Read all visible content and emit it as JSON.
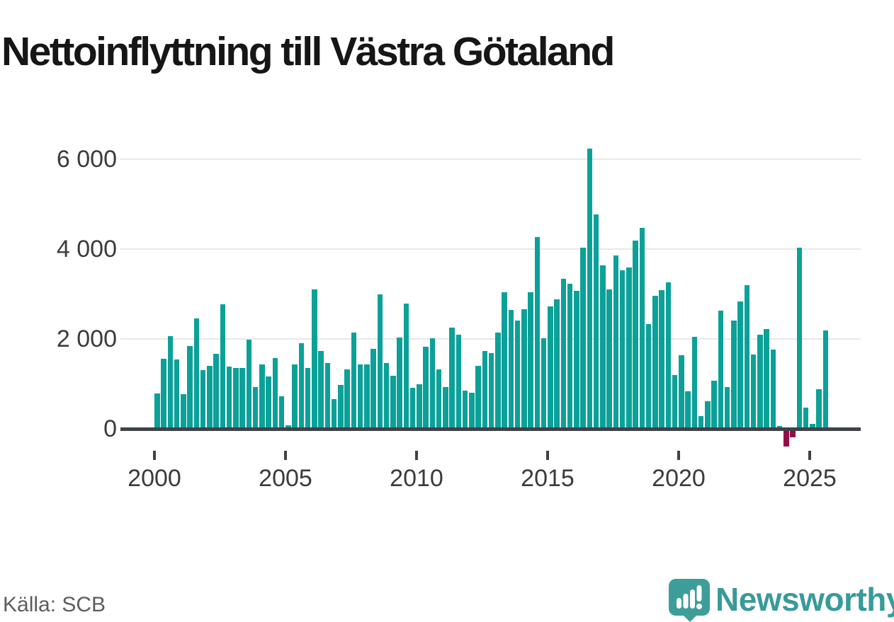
{
  "title": "Nettoinflyttning till Västra Götaland",
  "source": "Källa: SCB",
  "branding": {
    "name": "Newsworthy",
    "logo_icon": "newsworthy-pin-barchart-icon"
  },
  "colors": {
    "bar_positive": "#0ba198",
    "bar_negative": "#960c45",
    "gridline": "#e8e8e8",
    "axis": "#3f4246",
    "tick_text": "#3b3b3b",
    "title_text": "#161616",
    "source_text": "#5d5d61",
    "brand_teal": "#399a9a"
  },
  "chart_data": {
    "type": "bar",
    "title": "Nettoinflyttning till Västra Götaland",
    "xlabel": "",
    "ylabel": "",
    "frequency": "quarterly",
    "period_start": "2000 Q1",
    "period_end": "2025 Q3",
    "values": [
      790,
      1560,
      2060,
      1540,
      770,
      1840,
      2460,
      1310,
      1400,
      1670,
      2780,
      1380,
      1350,
      1350,
      1990,
      930,
      1430,
      1170,
      1580,
      720,
      80,
      1430,
      1900,
      1350,
      3100,
      1730,
      1460,
      660,
      980,
      1330,
      2150,
      1430,
      1430,
      1780,
      3000,
      1460,
      1180,
      2030,
      2790,
      920,
      1000,
      1830,
      2020,
      1320,
      930,
      2260,
      2100,
      850,
      800,
      1400,
      1730,
      1680,
      2140,
      3040,
      2650,
      2410,
      2660,
      3040,
      4270,
      2020,
      2730,
      2880,
      3350,
      3230,
      3080,
      4040,
      6240,
      4780,
      3640,
      3110,
      3870,
      3530,
      3600,
      4200,
      4480,
      2330,
      2960,
      3090,
      3270,
      1200,
      1640,
      830,
      2050,
      290,
      610,
      1080,
      2640,
      930,
      2410,
      2840,
      3200,
      1660,
      2090,
      2230,
      1760,
      60,
      -380,
      -170,
      4040,
      470,
      110,
      880,
      2190
    ],
    "ylim": [
      -500,
      6500
    ],
    "yticks": [
      {
        "value": 0,
        "label": "0"
      },
      {
        "value": 2000,
        "label": "2 000"
      },
      {
        "value": 4000,
        "label": "4 000"
      },
      {
        "value": 6000,
        "label": "6 000"
      }
    ],
    "xticks": [
      {
        "year": 2000,
        "label": "2000"
      },
      {
        "year": 2005,
        "label": "2005"
      },
      {
        "year": 2010,
        "label": "2010"
      },
      {
        "year": 2015,
        "label": "2015"
      },
      {
        "year": 2020,
        "label": "2020"
      },
      {
        "year": 2025,
        "label": "2025"
      }
    ],
    "grid": "horizontal",
    "legend": "none"
  }
}
